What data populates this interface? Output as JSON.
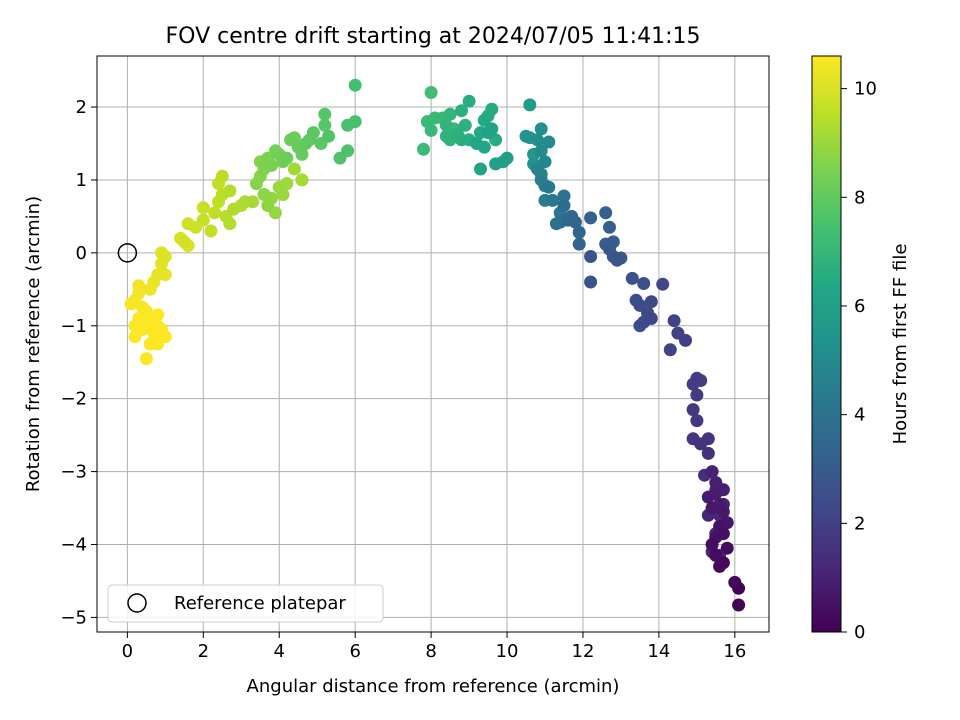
{
  "chart_data": {
    "type": "scatter",
    "title": "FOV centre drift starting at 2024/07/05 11:41:15",
    "xlabel": "Angular distance from reference (arcmin)",
    "ylabel": "Rotation from reference (arcmin)",
    "xlim": [
      -0.8,
      16.9
    ],
    "ylim": [
      -5.2,
      2.7
    ],
    "xticks": [
      0,
      2,
      4,
      6,
      8,
      10,
      12,
      14,
      16
    ],
    "yticks": [
      -5,
      -4,
      -3,
      -2,
      -1,
      0,
      1,
      2
    ],
    "xtick_labels": [
      "0",
      "2",
      "4",
      "6",
      "8",
      "10",
      "12",
      "14",
      "16"
    ],
    "ytick_labels": [
      "−5",
      "−4",
      "−3",
      "−2",
      "−1",
      "0",
      "1",
      "2"
    ],
    "grid": true,
    "legend": {
      "placement": "lower-left",
      "entries": [
        {
          "label": "Reference platepar",
          "marker": "open-circle"
        }
      ]
    },
    "reference_point": {
      "x": 0,
      "y": 0
    },
    "colorbar": {
      "label": "Hours from first FF file",
      "range": [
        0,
        10.6
      ],
      "ticks": [
        0,
        2,
        4,
        6,
        8,
        10
      ],
      "tick_labels": [
        "0",
        "2",
        "4",
        "6",
        "8",
        "10"
      ],
      "colormap": "viridis"
    },
    "series": [
      {
        "points": [
          [
            16.1,
            -4.83,
            0.05
          ],
          [
            16.1,
            -4.6,
            0.1
          ],
          [
            16.0,
            -4.52,
            0.15
          ],
          [
            15.7,
            -4.25,
            0.2
          ],
          [
            15.6,
            -4.3,
            0.25
          ],
          [
            15.8,
            -4.05,
            0.3
          ],
          [
            15.5,
            -4.15,
            0.35
          ],
          [
            15.4,
            -4.0,
            0.4
          ],
          [
            15.7,
            -3.85,
            0.45
          ],
          [
            15.6,
            -3.75,
            0.5
          ],
          [
            15.5,
            -3.9,
            0.55
          ],
          [
            15.8,
            -3.7,
            0.6
          ],
          [
            15.7,
            -3.55,
            0.65
          ],
          [
            15.4,
            -3.5,
            0.7
          ],
          [
            15.6,
            -3.45,
            0.75
          ],
          [
            15.3,
            -3.35,
            0.8
          ],
          [
            15.5,
            -3.3,
            0.85
          ],
          [
            15.7,
            -3.25,
            0.9
          ],
          [
            15.5,
            -3.15,
            0.95
          ],
          [
            15.4,
            -3.0,
            1.0
          ],
          [
            15.7,
            -3.45,
            1.05
          ],
          [
            15.3,
            -3.6,
            1.1
          ],
          [
            15.6,
            -3.6,
            1.15
          ],
          [
            15.5,
            -3.85,
            1.2
          ],
          [
            15.4,
            -4.1,
            1.25
          ],
          [
            15.6,
            -4.15,
            1.3
          ],
          [
            15.5,
            -3.25,
            1.35
          ],
          [
            15.2,
            -3.05,
            1.4
          ],
          [
            15.3,
            -2.75,
            1.5
          ],
          [
            15.1,
            -2.62,
            1.55
          ],
          [
            15.3,
            -2.55,
            1.6
          ],
          [
            14.9,
            -2.55,
            1.65
          ],
          [
            15.0,
            -2.3,
            1.7
          ],
          [
            14.9,
            -2.15,
            1.75
          ],
          [
            15.0,
            -1.95,
            1.8
          ],
          [
            14.9,
            -1.8,
            1.85
          ],
          [
            15.1,
            -1.75,
            1.9
          ],
          [
            15.0,
            -1.72,
            1.95
          ],
          [
            14.7,
            -1.2,
            2.0
          ],
          [
            14.5,
            -1.1,
            2.05
          ],
          [
            14.3,
            -1.33,
            2.1
          ],
          [
            14.4,
            -0.93,
            2.15
          ],
          [
            14.1,
            -0.43,
            2.2
          ],
          [
            13.8,
            -0.9,
            2.25
          ],
          [
            13.6,
            -0.95,
            2.3
          ],
          [
            13.8,
            -0.67,
            2.35
          ],
          [
            13.7,
            -0.82,
            2.4
          ],
          [
            13.5,
            -0.72,
            2.45
          ],
          [
            13.4,
            -0.65,
            2.5
          ],
          [
            13.5,
            -1.0,
            2.55
          ],
          [
            13.6,
            -0.42,
            2.6
          ],
          [
            13.3,
            -0.35,
            2.65
          ],
          [
            12.2,
            -0.4,
            2.7
          ],
          [
            12.2,
            -0.05,
            2.75
          ],
          [
            12.9,
            -0.1,
            2.8
          ],
          [
            12.8,
            -0.05,
            2.9
          ],
          [
            13.0,
            -0.07,
            2.95
          ],
          [
            12.7,
            0.05,
            3.0
          ],
          [
            12.8,
            0.15,
            3.05
          ],
          [
            12.6,
            0.12,
            3.1
          ],
          [
            12.7,
            0.35,
            3.15
          ],
          [
            12.6,
            0.55,
            3.2
          ],
          [
            12.2,
            0.48,
            3.3
          ],
          [
            11.9,
            0.12,
            3.4
          ],
          [
            11.9,
            0.28,
            3.45
          ],
          [
            11.8,
            0.42,
            3.5
          ],
          [
            11.7,
            0.5,
            3.55
          ],
          [
            11.6,
            0.45,
            3.6
          ],
          [
            11.5,
            0.65,
            3.7
          ],
          [
            11.4,
            0.42,
            3.8
          ],
          [
            11.3,
            0.4,
            3.9
          ],
          [
            11.5,
            0.78,
            4.0
          ],
          [
            11.4,
            0.55,
            4.1
          ],
          [
            11.2,
            0.72,
            4.2
          ],
          [
            11.1,
            0.9,
            4.3
          ],
          [
            11.0,
            0.92,
            4.4
          ],
          [
            11.0,
            0.72,
            4.5
          ],
          [
            10.9,
            1.0,
            4.6
          ],
          [
            10.9,
            1.08,
            4.7
          ],
          [
            10.8,
            1.15,
            4.8
          ],
          [
            11.0,
            1.25,
            4.9
          ],
          [
            11.1,
            1.52,
            5.0
          ],
          [
            10.9,
            1.4,
            5.1
          ],
          [
            10.8,
            1.55,
            5.2
          ],
          [
            10.9,
            1.7,
            5.3
          ],
          [
            10.7,
            1.22,
            5.4
          ],
          [
            10.5,
            1.6,
            5.5
          ],
          [
            10.6,
            1.58,
            5.6
          ],
          [
            10.7,
            1.35,
            5.7
          ],
          [
            10.6,
            2.03,
            5.8
          ],
          [
            10.0,
            1.3,
            5.9
          ],
          [
            9.9,
            1.25,
            6.0
          ],
          [
            9.7,
            1.22,
            6.05
          ],
          [
            9.6,
            1.7,
            6.1
          ],
          [
            9.5,
            1.65,
            6.15
          ],
          [
            9.3,
            1.15,
            6.2
          ],
          [
            9.4,
            1.45,
            6.25
          ],
          [
            9.2,
            1.5,
            6.3
          ],
          [
            9.3,
            1.65,
            6.35
          ],
          [
            9.4,
            1.82,
            6.4
          ],
          [
            9.5,
            1.88,
            6.45
          ],
          [
            9.6,
            1.97,
            6.5
          ],
          [
            9.7,
            1.55,
            6.55
          ],
          [
            9.0,
            1.55,
            6.6
          ],
          [
            8.8,
            1.55,
            6.65
          ],
          [
            8.7,
            1.62,
            6.7
          ],
          [
            8.9,
            1.75,
            6.75
          ],
          [
            8.5,
            1.55,
            6.8
          ],
          [
            8.4,
            1.6,
            6.85
          ],
          [
            8.4,
            1.75,
            6.9
          ],
          [
            8.6,
            1.7,
            6.95
          ],
          [
            8.3,
            1.85,
            7.0
          ],
          [
            8.0,
            1.68,
            7.05
          ],
          [
            8.1,
            1.85,
            7.1
          ],
          [
            7.8,
            1.42,
            7.2
          ],
          [
            8.0,
            2.2,
            7.3
          ],
          [
            9.0,
            2.08,
            6.6
          ],
          [
            8.5,
            1.9,
            6.9
          ],
          [
            8.8,
            1.95,
            6.7
          ],
          [
            7.9,
            1.8,
            7.15
          ],
          [
            6.0,
            2.3,
            7.4
          ],
          [
            6.0,
            1.8,
            7.5
          ],
          [
            5.8,
            1.75,
            7.55
          ],
          [
            5.8,
            1.4,
            7.6
          ],
          [
            5.6,
            1.3,
            7.65
          ],
          [
            5.3,
            1.6,
            7.7
          ],
          [
            5.2,
            1.9,
            7.75
          ],
          [
            5.2,
            1.75,
            7.8
          ],
          [
            5.1,
            1.5,
            7.85
          ],
          [
            4.9,
            1.65,
            7.9
          ],
          [
            4.8,
            1.55,
            7.95
          ],
          [
            4.7,
            1.5,
            8.0
          ],
          [
            4.6,
            1.35,
            8.05
          ],
          [
            4.5,
            1.45,
            8.1
          ],
          [
            4.4,
            1.58,
            8.15
          ],
          [
            4.3,
            1.55,
            8.2
          ],
          [
            4.2,
            1.3,
            8.25
          ],
          [
            4.1,
            1.25,
            8.3
          ],
          [
            4.0,
            1.35,
            8.35
          ],
          [
            3.9,
            1.4,
            8.4
          ],
          [
            3.8,
            1.2,
            8.45
          ],
          [
            3.7,
            1.3,
            8.5
          ],
          [
            3.6,
            1.15,
            8.55
          ],
          [
            3.5,
            1.25,
            8.6
          ],
          [
            3.5,
            1.05,
            8.65
          ],
          [
            3.4,
            0.95,
            8.7
          ],
          [
            3.6,
            0.8,
            8.75
          ],
          [
            3.7,
            0.65,
            8.8
          ],
          [
            3.8,
            0.75,
            8.85
          ],
          [
            3.9,
            0.55,
            8.9
          ],
          [
            4.0,
            0.9,
            8.95
          ],
          [
            4.1,
            0.8,
            9.0
          ],
          [
            4.2,
            0.95,
            9.05
          ],
          [
            4.4,
            1.15,
            9.1
          ],
          [
            4.6,
            1.0,
            9.15
          ],
          [
            3.3,
            0.7,
            9.2
          ],
          [
            3.1,
            0.7,
            9.25
          ],
          [
            3.0,
            0.65,
            9.3
          ],
          [
            2.8,
            0.6,
            9.35
          ],
          [
            2.7,
            0.4,
            9.4
          ],
          [
            2.6,
            0.5,
            9.45
          ],
          [
            2.5,
            0.8,
            9.5
          ],
          [
            2.4,
            0.7,
            9.55
          ],
          [
            2.3,
            0.55,
            9.6
          ],
          [
            2.2,
            0.3,
            9.65
          ],
          [
            2.0,
            0.45,
            9.7
          ],
          [
            2.0,
            0.62,
            9.75
          ],
          [
            1.8,
            0.35,
            9.8
          ],
          [
            1.6,
            0.4,
            9.85
          ],
          [
            1.5,
            0.15,
            9.9
          ],
          [
            1.4,
            0.2,
            9.95
          ],
          [
            1.6,
            0.1,
            10.0
          ],
          [
            2.4,
            0.95,
            9.6
          ],
          [
            2.5,
            1.05,
            9.5
          ],
          [
            2.7,
            0.85,
            9.4
          ],
          [
            0.9,
            0.0,
            10.05
          ],
          [
            1.0,
            -0.05,
            10.1
          ],
          [
            0.9,
            -0.15,
            10.15
          ],
          [
            1.0,
            -0.3,
            10.2
          ],
          [
            0.8,
            -0.3,
            10.25
          ],
          [
            0.7,
            -0.4,
            10.3
          ],
          [
            0.6,
            -0.5,
            10.35
          ],
          [
            0.3,
            -0.45,
            10.4
          ],
          [
            0.3,
            -0.55,
            10.45
          ],
          [
            0.2,
            -0.65,
            10.5
          ],
          [
            0.1,
            -0.7,
            10.5
          ],
          [
            0.4,
            -0.75,
            10.5
          ],
          [
            0.5,
            -0.8,
            10.55
          ],
          [
            0.3,
            -0.9,
            10.55
          ],
          [
            0.2,
            -1.0,
            10.55
          ],
          [
            0.4,
            -1.05,
            10.55
          ],
          [
            0.6,
            -0.95,
            10.6
          ],
          [
            0.7,
            -1.1,
            10.6
          ],
          [
            0.8,
            -1.0,
            10.6
          ],
          [
            0.9,
            -1.15,
            10.6
          ],
          [
            1.0,
            -1.15,
            10.6
          ],
          [
            0.8,
            -1.25,
            10.6
          ],
          [
            0.6,
            -1.25,
            10.6
          ],
          [
            0.5,
            -1.45,
            10.6
          ],
          [
            0.2,
            -1.15,
            10.6
          ],
          [
            0.7,
            -0.9,
            10.6
          ],
          [
            0.9,
            -1.05,
            10.6
          ],
          [
            0.8,
            -0.85,
            10.6
          ]
        ]
      }
    ]
  }
}
